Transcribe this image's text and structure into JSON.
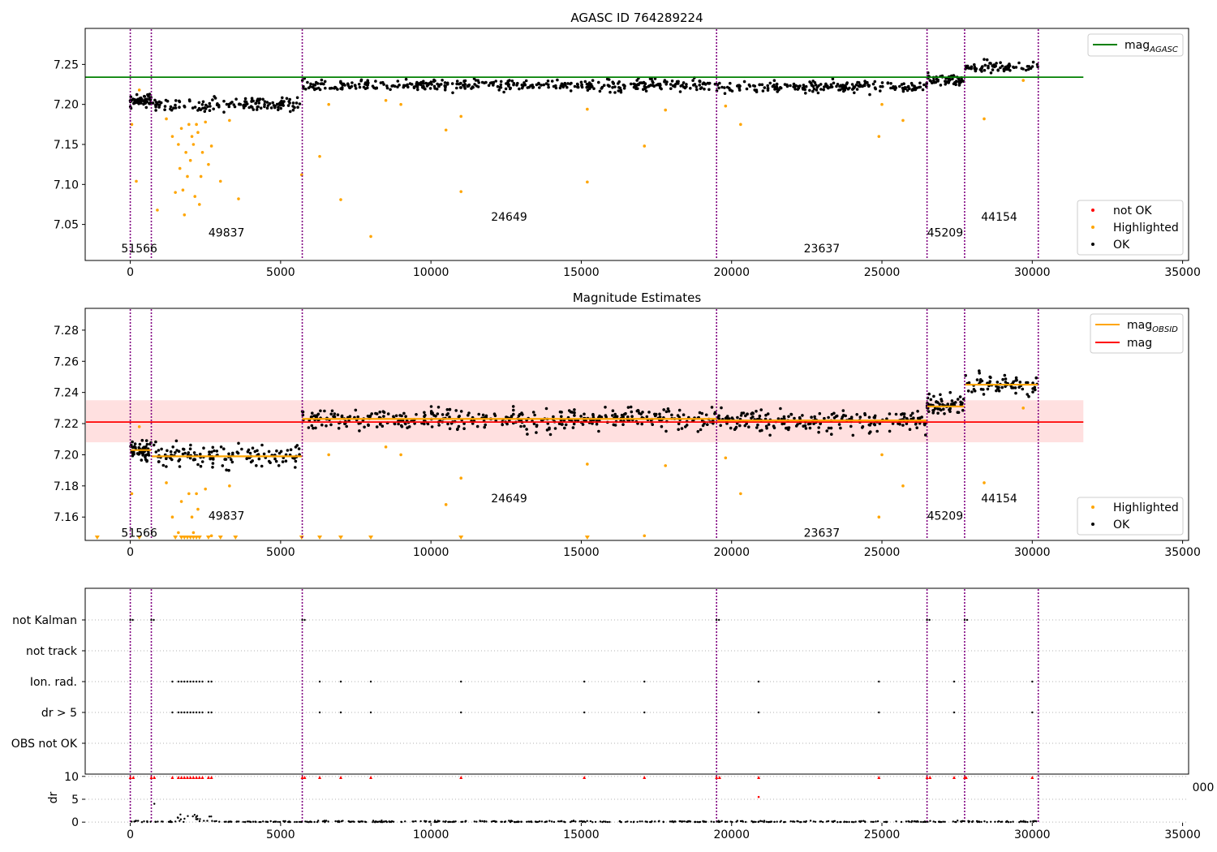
{
  "figure": {
    "panel1_title": "AGASC ID 764289224",
    "panel2_title": "Magnitude Estimates"
  },
  "chart_data": [
    {
      "type": "scatter",
      "title": "AGASC ID 764289224",
      "xlim": [
        -1500,
        35200
      ],
      "ylim": [
        7.005,
        7.295
      ],
      "xticks": [
        0,
        5000,
        10000,
        15000,
        20000,
        25000,
        30000,
        35000
      ],
      "xtick_labels": [
        "0",
        "5000",
        "10000",
        "15000",
        "20000",
        "25000",
        "30000",
        "35000"
      ],
      "yticks": [
        7.05,
        7.1,
        7.15,
        7.2,
        7.25
      ],
      "ytick_labels": [
        "7.05",
        "7.10",
        "7.15",
        "7.20",
        "7.25"
      ],
      "obs_boundaries": [
        0,
        700,
        5720,
        19500,
        26500,
        27750,
        30200
      ],
      "obs_labels": [
        {
          "x": 300,
          "y": 7.02,
          "text": "51566"
        },
        {
          "x": 3200,
          "y": 7.04,
          "text": "49837"
        },
        {
          "x": 12600,
          "y": 7.06,
          "text": "24649"
        },
        {
          "x": 23000,
          "y": 7.02,
          "text": "23637"
        },
        {
          "x": 27100,
          "y": 7.04,
          "text": "45209"
        },
        {
          "x": 28900,
          "y": 7.06,
          "text": "44154"
        }
      ],
      "ok_bands": [
        {
          "x0": 0,
          "x1": 700,
          "center": 7.204,
          "spread": 0.01
        },
        {
          "x0": 700,
          "x1": 5720,
          "center": 7.2,
          "spread": 0.011
        },
        {
          "x0": 5720,
          "x1": 19500,
          "center": 7.224,
          "spread": 0.011
        },
        {
          "x0": 19500,
          "x1": 26500,
          "center": 7.222,
          "spread": 0.011
        },
        {
          "x0": 26500,
          "x1": 27750,
          "center": 7.231,
          "spread": 0.01
        },
        {
          "x0": 27750,
          "x1": 30200,
          "center": 7.246,
          "spread": 0.01
        }
      ],
      "highlighted_points": [
        [
          50,
          7.175
        ],
        [
          200,
          7.104
        ],
        [
          300,
          7.218
        ],
        [
          900,
          7.068
        ],
        [
          1200,
          7.182
        ],
        [
          1400,
          7.16
        ],
        [
          1500,
          7.09
        ],
        [
          1600,
          7.15
        ],
        [
          1650,
          7.12
        ],
        [
          1700,
          7.17
        ],
        [
          1750,
          7.093
        ],
        [
          1800,
          7.062
        ],
        [
          1850,
          7.14
        ],
        [
          1900,
          7.11
        ],
        [
          1950,
          7.175
        ],
        [
          2000,
          7.13
        ],
        [
          2050,
          7.16
        ],
        [
          2100,
          7.15
        ],
        [
          2150,
          7.085
        ],
        [
          2200,
          7.175
        ],
        [
          2250,
          7.165
        ],
        [
          2300,
          7.075
        ],
        [
          2350,
          7.11
        ],
        [
          2400,
          7.14
        ],
        [
          2500,
          7.178
        ],
        [
          2600,
          7.125
        ],
        [
          2700,
          7.148
        ],
        [
          3000,
          7.104
        ],
        [
          3300,
          7.18
        ],
        [
          3600,
          7.082
        ],
        [
          5700,
          7.112
        ],
        [
          6300,
          7.135
        ],
        [
          6600,
          7.2
        ],
        [
          7000,
          7.081
        ],
        [
          8000,
          7.035
        ],
        [
          8500,
          7.205
        ],
        [
          9000,
          7.2
        ],
        [
          10500,
          7.168
        ],
        [
          11000,
          7.185
        ],
        [
          11000,
          7.091
        ],
        [
          15200,
          7.194
        ],
        [
          15200,
          7.103
        ],
        [
          17100,
          7.148
        ],
        [
          17800,
          7.193
        ],
        [
          19800,
          7.198
        ],
        [
          20300,
          7.175
        ],
        [
          24900,
          7.16
        ],
        [
          25000,
          7.2
        ],
        [
          25700,
          7.18
        ],
        [
          28400,
          7.182
        ],
        [
          29700,
          7.23
        ]
      ],
      "horizontal_lines": [
        {
          "name": "mag_AGASC",
          "value": 7.234,
          "x0": -1500,
          "x1": 31700,
          "color": "#008000"
        }
      ],
      "legend_top": {
        "placement": "top-right",
        "entries": [
          {
            "label": "mag",
            "subscript": "AGASC",
            "color": "#008000"
          }
        ]
      },
      "legend_bottom": {
        "placement": "lower-right",
        "entries": [
          {
            "label": "not OK",
            "color": "#ff0000"
          },
          {
            "label": "Highlighted",
            "color": "#ffa500"
          },
          {
            "label": "OK",
            "color": "#000000"
          }
        ]
      }
    },
    {
      "type": "scatter",
      "title": "Magnitude Estimates",
      "xlim": [
        -1500,
        35200
      ],
      "ylim": [
        7.145,
        7.294
      ],
      "xticks": [
        0,
        5000,
        10000,
        15000,
        20000,
        25000,
        30000,
        35000
      ],
      "xtick_labels": [
        "0",
        "5000",
        "10000",
        "15000",
        "20000",
        "25000",
        "30000",
        "35000"
      ],
      "yticks": [
        7.16,
        7.18,
        7.2,
        7.22,
        7.24,
        7.26,
        7.28
      ],
      "ytick_labels": [
        "7.16",
        "7.18",
        "7.20",
        "7.22",
        "7.24",
        "7.26",
        "7.28"
      ],
      "obs_labels": [
        {
          "x": 300,
          "y": 7.15,
          "text": "51566"
        },
        {
          "x": 3200,
          "y": 7.161,
          "text": "49837"
        },
        {
          "x": 12600,
          "y": 7.172,
          "text": "24649"
        },
        {
          "x": 23000,
          "y": 7.15,
          "text": "23637"
        },
        {
          "x": 27100,
          "y": 7.161,
          "text": "45209"
        },
        {
          "x": 28900,
          "y": 7.172,
          "text": "44154"
        }
      ],
      "mag_obsid": [
        {
          "x0": 0,
          "x1": 700,
          "value": 7.203
        },
        {
          "x0": 700,
          "x1": 5720,
          "value": 7.199
        },
        {
          "x0": 5720,
          "x1": 19500,
          "value": 7.223
        },
        {
          "x0": 19500,
          "x1": 26500,
          "value": 7.222
        },
        {
          "x0": 26500,
          "x1": 27750,
          "value": 7.231
        },
        {
          "x0": 27750,
          "x1": 30200,
          "value": 7.245
        }
      ],
      "mag": {
        "value": 7.221,
        "band": [
          7.208,
          7.235
        ],
        "x0": -1500,
        "x1": 31700,
        "color": "#ff0000"
      },
      "off_scale_x": [
        -1100,
        300,
        1500,
        1700,
        1800,
        1900,
        2000,
        2100,
        2200,
        2300,
        2600,
        3000,
        3500,
        5700,
        6300,
        7000,
        8000,
        11000,
        15200
      ],
      "legend_top": {
        "placement": "top-right",
        "entries": [
          {
            "label": "mag",
            "subscript": "OBSID",
            "color": "#ffa500"
          },
          {
            "label": "mag",
            "color": "#ff0000"
          }
        ]
      },
      "legend_bottom": {
        "placement": "lower-right",
        "entries": [
          {
            "label": "Highlighted",
            "color": "#ffa500"
          },
          {
            "label": "OK",
            "color": "#000000"
          }
        ]
      }
    },
    {
      "type": "scatter",
      "xlim": [
        -1500,
        35200
      ],
      "categories": [
        "not Kalman",
        "not track",
        "Ion. rad.",
        "dr > 5",
        "OBS not OK"
      ],
      "flag_x": {
        "not Kalman": [
          0,
          700,
          5720,
          19500,
          26500,
          27750
        ],
        "Ion. rad.": [
          1400,
          1600,
          1700,
          1800,
          1900,
          2000,
          2100,
          2200,
          2300,
          2400,
          2600,
          2700,
          6300,
          7000,
          8000,
          11000,
          15100,
          17100,
          20900,
          24900,
          27400,
          30000
        ],
        "dr > 5": [
          1400,
          1600,
          1700,
          1800,
          1900,
          2000,
          2100,
          2200,
          2300,
          2400,
          2600,
          2700,
          6300,
          7000,
          8000,
          11000,
          15100,
          17100,
          20900,
          24900,
          27400,
          30000
        ]
      }
    },
    {
      "type": "scatter",
      "xlim": [
        -1500,
        35200
      ],
      "ylim": [
        -0.5,
        10.5
      ],
      "ylabel": "dr",
      "yticks": [
        0,
        5,
        10
      ],
      "ytick_labels": [
        "0",
        "5",
        "10"
      ],
      "xticks": [
        0,
        5000,
        10000,
        15000,
        20000,
        25000,
        30000,
        35000
      ],
      "xtick_labels": [
        "0",
        "5000",
        "10000",
        "15000",
        "20000",
        "25000",
        "30000",
        "35000"
      ],
      "clipped_tick": "000",
      "not_ok_x": [
        0,
        100,
        700,
        800,
        1400,
        1600,
        1700,
        1800,
        1900,
        2000,
        2100,
        2200,
        2300,
        2400,
        2600,
        2700,
        5720,
        5800,
        6300,
        7000,
        8000,
        11000,
        15100,
        17100,
        19500,
        19600,
        20900,
        24900,
        26500,
        26600,
        27400,
        27750,
        27800,
        30000
      ],
      "extra_not_ok": [
        [
          20900,
          5.5
        ]
      ],
      "extra_ok": [
        [
          800,
          4.0
        ]
      ]
    }
  ]
}
